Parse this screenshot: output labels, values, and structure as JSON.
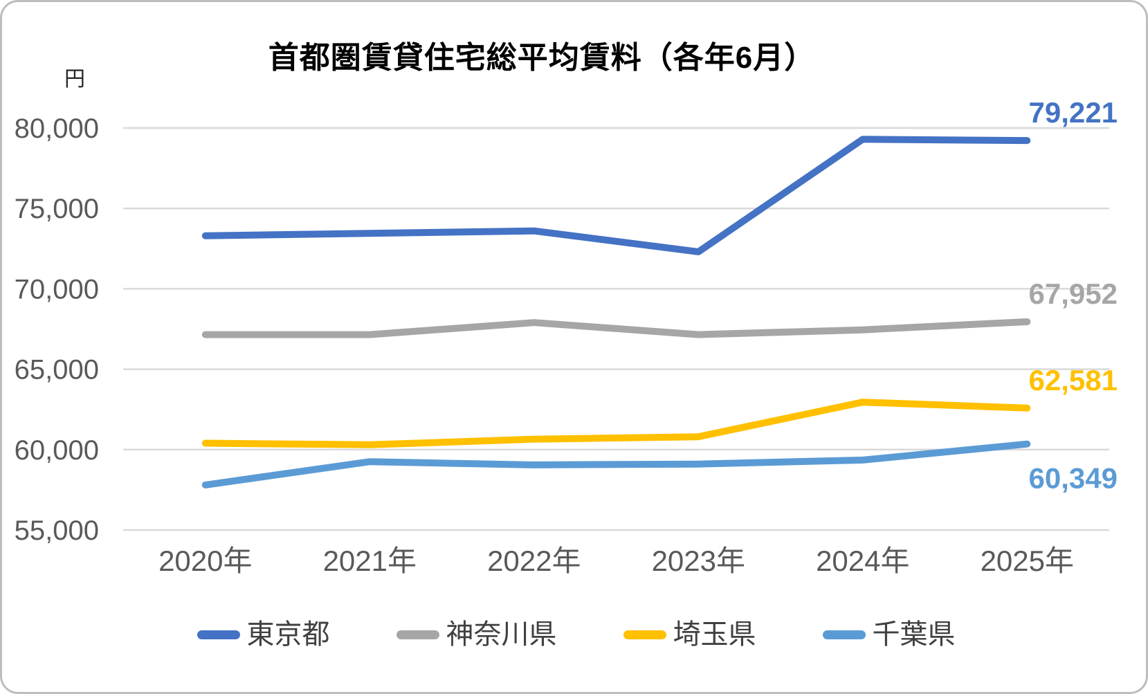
{
  "chart_data": {
    "type": "line",
    "title": "首都圏賃貸住宅総平均賃料（各年6月）",
    "unit_label": "円",
    "categories": [
      "2020年",
      "2021年",
      "2022年",
      "2023年",
      "2024年",
      "2025年"
    ],
    "ylim": [
      55000,
      80000
    ],
    "ytick_step": 5000,
    "ytick_labels": [
      "55,000",
      "60,000",
      "65,000",
      "70,000",
      "75,000",
      "80,000"
    ],
    "grid": true,
    "legend_position": "bottom",
    "series": [
      {
        "id": "tokyo",
        "name": "東京都",
        "color": "#4472C4",
        "values": [
          73300,
          73450,
          73600,
          72300,
          79300,
          79221
        ],
        "end_label": "79,221",
        "end_label_side": "above"
      },
      {
        "id": "kanagawa",
        "name": "神奈川県",
        "color": "#A6A6A6",
        "values": [
          67150,
          67150,
          67900,
          67150,
          67450,
          67952
        ],
        "end_label": "67,952",
        "end_label_side": "above"
      },
      {
        "id": "saitama",
        "name": "埼玉県",
        "color": "#FFC000",
        "values": [
          60400,
          60300,
          60650,
          60800,
          62950,
          62581
        ],
        "end_label": "62,581",
        "end_label_side": "above"
      },
      {
        "id": "chiba",
        "name": "千葉県",
        "color": "#5B9BD5",
        "values": [
          57800,
          59250,
          59050,
          59100,
          59350,
          60349
        ],
        "end_label": "60,349",
        "end_label_side": "below"
      }
    ]
  }
}
